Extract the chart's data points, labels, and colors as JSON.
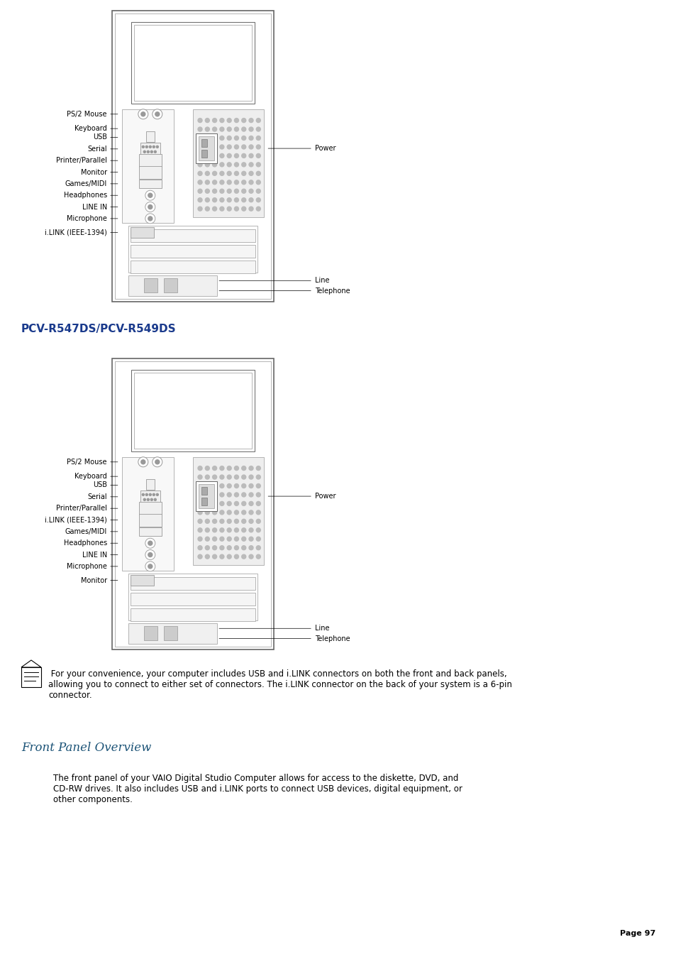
{
  "bg_color": "#ffffff",
  "page_width": 9.54,
  "page_height": 13.51,
  "title1": "PCV-R547DS/PCV-R549DS",
  "title1_color": "#1a3a8c",
  "title1_fontsize": 11,
  "section_title": "Front Panel Overview",
  "section_title_color": "#1a5276",
  "section_title_fontsize": 12,
  "note_text": " For your convenience, your computer includes USB and i.LINK connectors on both the front and back panels,\nallowing you to connect to either set of connectors. The i.LINK connector on the back of your system is a 6-pin\nconnector.",
  "note_fontsize": 8.5,
  "body_text": "The front panel of your VAIO Digital Studio Computer allows for access to the diskette, DVD, and\nCD-RW drives. It also includes USB and i.LINK ports to connect USB devices, digital equipment, or\nother components.",
  "body_fontsize": 8.5,
  "page_num": "Page 97",
  "page_num_fontsize": 8,
  "diagram1_labels_left": [
    "PS/2 Mouse",
    "Keyboard",
    "USB",
    "Serial",
    "Printer/Parallel",
    "Monitor",
    "Games/MIDI",
    "Headphones",
    "LINE IN",
    "Microphone",
    "i.LINK (IEEE-1394)"
  ],
  "diagram1_labels_right": [
    "Power",
    "Line",
    "Telephone"
  ],
  "diagram2_labels_left": [
    "PS/2 Mouse",
    "Keyboard",
    "USB",
    "Serial",
    "Printer/Parallel",
    "i.LINK (IEEE-1394)",
    "Games/MIDI",
    "Headphones",
    "LINE IN",
    "Microphone",
    "Monitor"
  ],
  "diagram2_labels_right": [
    "Power",
    "Line",
    "Telephone"
  ]
}
